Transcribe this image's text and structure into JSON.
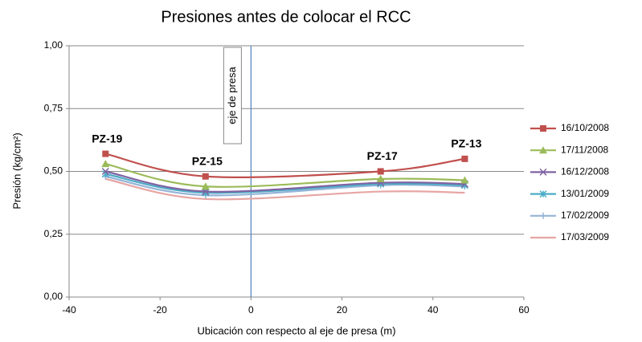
{
  "chart_data": {
    "type": "line",
    "title": "Presiones antes de colocar el RCC",
    "xlabel": "Ubicación con respecto al eje de presa (m)",
    "ylabel": "Presión (kg/cm²)",
    "x": [
      -32,
      -10,
      28.5,
      47
    ],
    "series": [
      {
        "name": "16/10/2008",
        "color": "#c0504d",
        "marker": "square",
        "values": [
          0.57,
          0.48,
          0.5,
          0.55
        ]
      },
      {
        "name": "17/11/2008",
        "color": "#9bbb59",
        "marker": "triangle",
        "values": [
          0.53,
          0.44,
          0.47,
          0.465
        ]
      },
      {
        "name": "16/12/2008",
        "color": "#8064a2",
        "marker": "x",
        "values": [
          0.5,
          0.42,
          0.455,
          0.45
        ]
      },
      {
        "name": "13/01/2009",
        "color": "#4bacc6",
        "marker": "asterisk",
        "values": [
          0.49,
          0.415,
          0.45,
          0.445
        ]
      },
      {
        "name": "17/02/2009",
        "color": "#95b3d7",
        "marker": "plus",
        "values": [
          0.48,
          0.405,
          0.445,
          0.44
        ]
      },
      {
        "name": "17/03/2009",
        "color": "#e6a6a4",
        "marker": "none",
        "values": [
          0.47,
          0.39,
          0.42,
          0.415
        ]
      }
    ],
    "annotations": [
      "PZ-19",
      "PZ-15",
      "PZ-17",
      "PZ-13"
    ],
    "reference_line": {
      "x": 0,
      "label": "eje de presa",
      "color": "#4f81bd"
    },
    "xlim": [
      -40,
      60
    ],
    "xticks": [
      -40,
      -20,
      0,
      20,
      40,
      60
    ],
    "ylim": [
      0,
      1
    ],
    "yticks": [
      {
        "value": 0,
        "label": "0,00"
      },
      {
        "value": 0.25,
        "label": "0,25"
      },
      {
        "value": 0.5,
        "label": "0,50"
      },
      {
        "value": 0.75,
        "label": "0,75"
      },
      {
        "value": 1,
        "label": "1,00"
      }
    ],
    "grid": true,
    "legend": "right"
  }
}
